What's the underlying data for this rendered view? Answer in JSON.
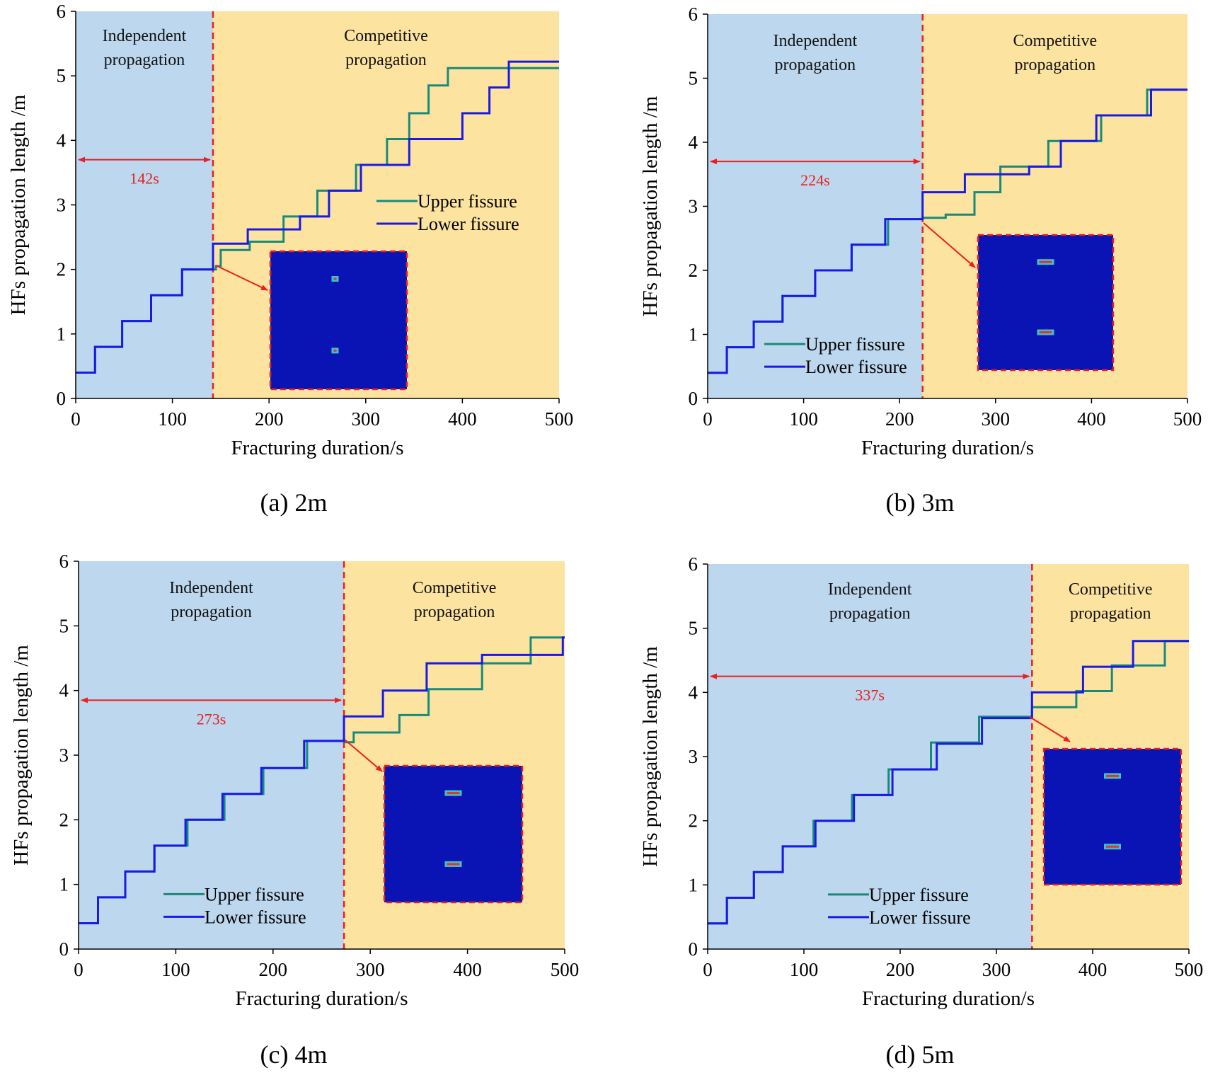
{
  "colors": {
    "independent_region": "#bdd7ee",
    "competitive_region": "#fde3a0",
    "upper_fissure": "#1a8a78",
    "lower_fissure": "#1a1ae6",
    "boundary": "#e82020",
    "annotation": "#e82020",
    "inset_fill": "#0a14b4"
  },
  "chart_data": [
    {
      "type": "line",
      "subtitle": "(a) 2m",
      "xlabel": "Fracturing duration/s",
      "ylabel": "HFs propagation length /m",
      "xlim": [
        0,
        500
      ],
      "ylim": [
        0,
        6
      ],
      "xticks": [
        "0",
        "100",
        "200",
        "300",
        "400",
        "500"
      ],
      "yticks": [
        "0",
        "1",
        "2",
        "3",
        "4",
        "5",
        "6"
      ],
      "grid": false,
      "legend_position": "upper-right",
      "regions": [
        {
          "label_line1": "Independent",
          "label_line2": "propagation",
          "x_start": 0,
          "x_end": 142
        },
        {
          "label_line1": "Competitive",
          "label_line2": "propagation",
          "x_start": 142,
          "x_end": 500
        }
      ],
      "boundary_x": 142,
      "duration_label": "142s",
      "duration_y": 3.7,
      "series": [
        {
          "name": "Upper fissure",
          "x": [
            0,
            20,
            20,
            48,
            48,
            78,
            78,
            110,
            110,
            145,
            145,
            150,
            150,
            180,
            180,
            215,
            215,
            250,
            250,
            290,
            290,
            322,
            322,
            345,
            345,
            365,
            365,
            385,
            385,
            500
          ],
          "y": [
            0.4,
            0.4,
            0.8,
            0.8,
            1.2,
            1.2,
            1.6,
            1.6,
            2.0,
            2.0,
            2.05,
            2.05,
            2.3,
            2.3,
            2.43,
            2.43,
            2.82,
            2.82,
            3.22,
            3.22,
            3.62,
            3.62,
            4.02,
            4.02,
            4.42,
            4.42,
            4.85,
            4.85,
            5.12,
            5.12
          ]
        },
        {
          "name": "Lower fissure",
          "x": [
            0,
            20,
            20,
            48,
            48,
            78,
            78,
            110,
            110,
            142,
            142,
            178,
            178,
            232,
            232,
            262,
            262,
            295,
            295,
            345,
            345,
            400,
            400,
            428,
            428,
            448,
            448,
            500
          ],
          "y": [
            0.4,
            0.4,
            0.8,
            0.8,
            1.2,
            1.2,
            1.6,
            1.6,
            2.0,
            2.0,
            2.4,
            2.4,
            2.62,
            2.62,
            2.82,
            2.82,
            3.22,
            3.22,
            3.62,
            3.62,
            4.02,
            4.02,
            4.42,
            4.42,
            4.82,
            4.82,
            5.22,
            5.22
          ]
        }
      ]
    },
    {
      "type": "line",
      "subtitle": "(b) 3m",
      "xlabel": "Fracturing duration/s",
      "ylabel": "HFs propagation length /m",
      "xlim": [
        0,
        500
      ],
      "ylim": [
        0,
        6
      ],
      "xticks": [
        "0",
        "100",
        "200",
        "300",
        "400",
        "500"
      ],
      "yticks": [
        "0",
        "1",
        "2",
        "3",
        "4",
        "5",
        "6"
      ],
      "grid": false,
      "legend_position": "lower-left",
      "regions": [
        {
          "label_line1": "Independent",
          "label_line2": "propagation",
          "x_start": 0,
          "x_end": 224
        },
        {
          "label_line1": "Competitive",
          "label_line2": "propagation",
          "x_start": 224,
          "x_end": 500
        }
      ],
      "boundary_x": 224,
      "duration_label": "224s",
      "duration_y": 3.7,
      "series": [
        {
          "name": "Upper fissure",
          "x": [
            0,
            20,
            20,
            48,
            48,
            78,
            78,
            112,
            112,
            150,
            150,
            188,
            188,
            224,
            224,
            248,
            248,
            278,
            278,
            305,
            305,
            355,
            355,
            370,
            370,
            410,
            410,
            458,
            458,
            500
          ],
          "y": [
            0.4,
            0.4,
            0.8,
            0.8,
            1.2,
            1.2,
            1.6,
            1.6,
            2.0,
            2.0,
            2.4,
            2.4,
            2.8,
            2.8,
            2.82,
            2.82,
            2.87,
            2.87,
            3.22,
            3.22,
            3.62,
            3.62,
            4.02,
            4.02,
            4.02,
            4.02,
            4.42,
            4.42,
            4.82,
            4.82
          ]
        },
        {
          "name": "Lower fissure",
          "x": [
            0,
            20,
            20,
            48,
            48,
            78,
            78,
            112,
            112,
            150,
            150,
            185,
            185,
            224,
            224,
            268,
            268,
            335,
            335,
            368,
            368,
            405,
            405,
            462,
            462,
            500
          ],
          "y": [
            0.4,
            0.4,
            0.8,
            0.8,
            1.2,
            1.2,
            1.6,
            1.6,
            2.0,
            2.0,
            2.4,
            2.4,
            2.8,
            2.8,
            3.22,
            3.22,
            3.5,
            3.5,
            3.62,
            3.62,
            4.02,
            4.02,
            4.42,
            4.42,
            4.82,
            4.82
          ]
        }
      ]
    },
    {
      "type": "line",
      "subtitle": "(c) 4m",
      "xlabel": "Fracturing duration/s",
      "ylabel": "HFs propagation length /m",
      "xlim": [
        0,
        500
      ],
      "ylim": [
        0,
        6
      ],
      "xticks": [
        "0",
        "100",
        "200",
        "300",
        "400",
        "500"
      ],
      "yticks": [
        "0",
        "1",
        "2",
        "3",
        "4",
        "5",
        "6"
      ],
      "grid": false,
      "legend_position": "lower-left",
      "regions": [
        {
          "label_line1": "Independent",
          "label_line2": "propagation",
          "x_start": 0,
          "x_end": 273
        },
        {
          "label_line1": "Competitive",
          "label_line2": "propagation",
          "x_start": 273,
          "x_end": 500
        }
      ],
      "boundary_x": 273,
      "duration_label": "273s",
      "duration_y": 3.85,
      "series": [
        {
          "name": "Upper fissure",
          "x": [
            0,
            20,
            20,
            48,
            48,
            78,
            78,
            112,
            112,
            150,
            150,
            190,
            190,
            235,
            235,
            273,
            273,
            283,
            283,
            330,
            330,
            360,
            360,
            415,
            415,
            465,
            465,
            500
          ],
          "y": [
            0.4,
            0.4,
            0.8,
            0.8,
            1.2,
            1.2,
            1.6,
            1.6,
            2.0,
            2.0,
            2.4,
            2.4,
            2.8,
            2.8,
            3.22,
            3.22,
            3.2,
            3.2,
            3.35,
            3.35,
            3.62,
            3.62,
            4.02,
            4.02,
            4.42,
            4.42,
            4.82,
            4.82
          ]
        },
        {
          "name": "Lower fissure",
          "x": [
            0,
            20,
            20,
            48,
            48,
            78,
            78,
            110,
            110,
            148,
            148,
            188,
            188,
            232,
            232,
            273,
            273,
            313,
            313,
            358,
            358,
            415,
            415,
            498,
            498,
            500
          ],
          "y": [
            0.4,
            0.4,
            0.8,
            0.8,
            1.2,
            1.2,
            1.6,
            1.6,
            2.0,
            2.0,
            2.4,
            2.4,
            2.8,
            2.8,
            3.22,
            3.22,
            3.6,
            3.6,
            4.0,
            4.0,
            4.42,
            4.42,
            4.55,
            4.55,
            4.82,
            4.82
          ]
        }
      ]
    },
    {
      "type": "line",
      "subtitle": "(d) 5m",
      "xlabel": "Fracturing duration/s",
      "ylabel": "HFs propagation length /m",
      "xlim": [
        0,
        500
      ],
      "ylim": [
        0,
        6
      ],
      "xticks": [
        "0",
        "100",
        "200",
        "300",
        "400",
        "500"
      ],
      "yticks": [
        "0",
        "1",
        "2",
        "3",
        "4",
        "5",
        "6"
      ],
      "grid": false,
      "legend_position": "lower-left",
      "regions": [
        {
          "label_line1": "Independent",
          "label_line2": "propagation",
          "x_start": 0,
          "x_end": 337
        },
        {
          "label_line1": "Competitive",
          "label_line2": "propagation",
          "x_start": 337,
          "x_end": 500
        }
      ],
      "boundary_x": 337,
      "duration_label": "337s",
      "duration_y": 4.25,
      "series": [
        {
          "name": "Upper fissure",
          "x": [
            0,
            20,
            20,
            48,
            48,
            78,
            78,
            110,
            110,
            150,
            150,
            188,
            188,
            232,
            232,
            282,
            282,
            337,
            337,
            383,
            383,
            420,
            420,
            475,
            475,
            500
          ],
          "y": [
            0.4,
            0.4,
            0.8,
            0.8,
            1.2,
            1.2,
            1.6,
            1.6,
            2.0,
            2.0,
            2.4,
            2.4,
            2.8,
            2.8,
            3.22,
            3.22,
            3.62,
            3.62,
            3.77,
            3.77,
            4.02,
            4.02,
            4.42,
            4.42,
            4.8,
            4.8
          ]
        },
        {
          "name": "Lower fissure",
          "x": [
            0,
            20,
            20,
            48,
            48,
            78,
            78,
            112,
            112,
            152,
            152,
            192,
            192,
            238,
            238,
            285,
            285,
            337,
            337,
            390,
            390,
            442,
            442,
            500
          ],
          "y": [
            0.4,
            0.4,
            0.8,
            0.8,
            1.2,
            1.2,
            1.6,
            1.6,
            2.0,
            2.0,
            2.4,
            2.4,
            2.8,
            2.8,
            3.2,
            3.2,
            3.6,
            3.6,
            4.0,
            4.0,
            4.4,
            4.4,
            4.8,
            4.8
          ]
        }
      ]
    }
  ]
}
